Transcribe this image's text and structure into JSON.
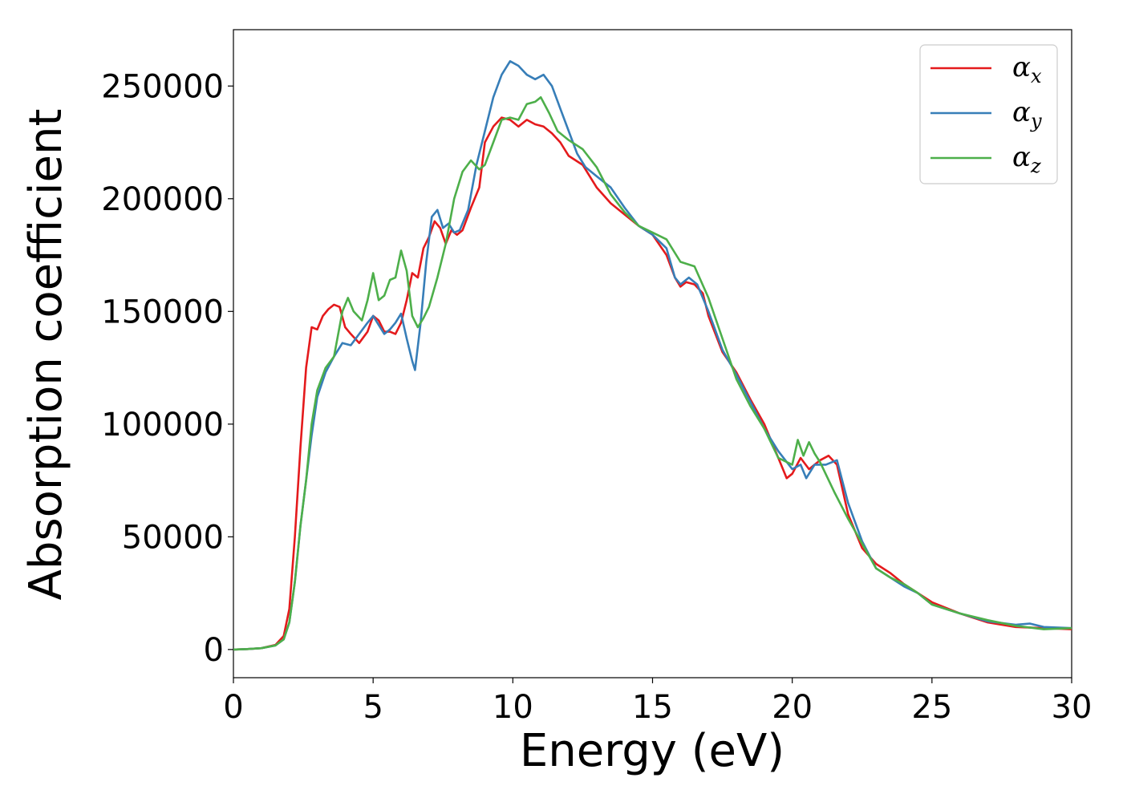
{
  "chart_data": {
    "type": "line",
    "xlabel": "Energy (eV)",
    "ylabel": "Absorption coefficient",
    "xlim": [
      0,
      30
    ],
    "ylim": [
      -12500,
      275000
    ],
    "xticks": [
      0,
      5,
      10,
      15,
      20,
      25,
      30
    ],
    "yticks": [
      0,
      50000,
      100000,
      150000,
      200000,
      250000
    ],
    "grid": false,
    "legend_position": "top-right",
    "series": [
      {
        "name": "α_x",
        "symbol": "α",
        "subscript": "x",
        "color": "#e41a1c",
        "points": [
          [
            0,
            0
          ],
          [
            0.5,
            200
          ],
          [
            1,
            600
          ],
          [
            1.5,
            2000
          ],
          [
            1.8,
            6000
          ],
          [
            2.0,
            18000
          ],
          [
            2.2,
            50000
          ],
          [
            2.4,
            90000
          ],
          [
            2.6,
            125000
          ],
          [
            2.8,
            143000
          ],
          [
            3.0,
            142000
          ],
          [
            3.2,
            148000
          ],
          [
            3.4,
            151000
          ],
          [
            3.6,
            153000
          ],
          [
            3.8,
            152000
          ],
          [
            4.0,
            143000
          ],
          [
            4.2,
            140000
          ],
          [
            4.5,
            136000
          ],
          [
            4.8,
            141000
          ],
          [
            5.0,
            148000
          ],
          [
            5.2,
            146000
          ],
          [
            5.4,
            141000
          ],
          [
            5.6,
            141000
          ],
          [
            5.8,
            140000
          ],
          [
            6.0,
            145000
          ],
          [
            6.2,
            155000
          ],
          [
            6.4,
            167000
          ],
          [
            6.6,
            165000
          ],
          [
            6.8,
            178000
          ],
          [
            7.0,
            183000
          ],
          [
            7.2,
            190000
          ],
          [
            7.4,
            187000
          ],
          [
            7.6,
            180000
          ],
          [
            7.8,
            186000
          ],
          [
            8.0,
            184000
          ],
          [
            8.2,
            186000
          ],
          [
            8.5,
            196000
          ],
          [
            8.8,
            205000
          ],
          [
            9.0,
            225000
          ],
          [
            9.3,
            232000
          ],
          [
            9.6,
            236000
          ],
          [
            9.9,
            235000
          ],
          [
            10.2,
            232000
          ],
          [
            10.5,
            235000
          ],
          [
            10.8,
            233000
          ],
          [
            11.1,
            232000
          ],
          [
            11.4,
            229000
          ],
          [
            11.7,
            225000
          ],
          [
            12.0,
            219000
          ],
          [
            12.5,
            215000
          ],
          [
            13.0,
            205000
          ],
          [
            13.5,
            198000
          ],
          [
            14.0,
            193000
          ],
          [
            14.5,
            188000
          ],
          [
            15.0,
            184000
          ],
          [
            15.5,
            175000
          ],
          [
            15.8,
            165000
          ],
          [
            16.0,
            161000
          ],
          [
            16.2,
            163000
          ],
          [
            16.5,
            162000
          ],
          [
            16.8,
            158000
          ],
          [
            17.0,
            148000
          ],
          [
            17.5,
            132000
          ],
          [
            18.0,
            123000
          ],
          [
            18.5,
            111000
          ],
          [
            19.0,
            100000
          ],
          [
            19.5,
            85000
          ],
          [
            19.8,
            76000
          ],
          [
            20.0,
            78000
          ],
          [
            20.3,
            85000
          ],
          [
            20.6,
            80000
          ],
          [
            21.0,
            84000
          ],
          [
            21.3,
            86000
          ],
          [
            21.6,
            82000
          ],
          [
            22.0,
            60000
          ],
          [
            22.5,
            45000
          ],
          [
            23.0,
            38000
          ],
          [
            23.5,
            34000
          ],
          [
            24.0,
            29000
          ],
          [
            24.5,
            25000
          ],
          [
            25.0,
            21000
          ],
          [
            26.0,
            16000
          ],
          [
            27.0,
            12000
          ],
          [
            28.0,
            10000
          ],
          [
            29.0,
            9500
          ],
          [
            30.0,
            9000
          ]
        ]
      },
      {
        "name": "α_y",
        "symbol": "α",
        "subscript": "y",
        "color": "#377eb8",
        "points": [
          [
            0,
            0
          ],
          [
            0.5,
            200
          ],
          [
            1,
            600
          ],
          [
            1.5,
            1800
          ],
          [
            1.8,
            4500
          ],
          [
            2.0,
            12000
          ],
          [
            2.2,
            30000
          ],
          [
            2.4,
            55000
          ],
          [
            2.6,
            75000
          ],
          [
            2.8,
            95000
          ],
          [
            3.0,
            112000
          ],
          [
            3.3,
            123000
          ],
          [
            3.6,
            130000
          ],
          [
            3.9,
            136000
          ],
          [
            4.2,
            135000
          ],
          [
            4.5,
            140000
          ],
          [
            4.8,
            145000
          ],
          [
            5.0,
            148000
          ],
          [
            5.2,
            144000
          ],
          [
            5.4,
            140000
          ],
          [
            5.6,
            142000
          ],
          [
            5.8,
            145000
          ],
          [
            6.0,
            149000
          ],
          [
            6.2,
            138000
          ],
          [
            6.4,
            128000
          ],
          [
            6.5,
            124000
          ],
          [
            6.7,
            145000
          ],
          [
            6.9,
            172000
          ],
          [
            7.1,
            192000
          ],
          [
            7.3,
            195000
          ],
          [
            7.5,
            187000
          ],
          [
            7.7,
            189000
          ],
          [
            7.9,
            185000
          ],
          [
            8.1,
            186000
          ],
          [
            8.4,
            195000
          ],
          [
            8.7,
            215000
          ],
          [
            9.0,
            230000
          ],
          [
            9.3,
            245000
          ],
          [
            9.6,
            255000
          ],
          [
            9.9,
            261000
          ],
          [
            10.2,
            259000
          ],
          [
            10.5,
            255000
          ],
          [
            10.8,
            253000
          ],
          [
            11.1,
            255000
          ],
          [
            11.4,
            250000
          ],
          [
            11.7,
            240000
          ],
          [
            12.0,
            230000
          ],
          [
            12.3,
            220000
          ],
          [
            12.6,
            214000
          ],
          [
            13.0,
            210000
          ],
          [
            13.5,
            205000
          ],
          [
            14.0,
            196000
          ],
          [
            14.5,
            188000
          ],
          [
            15.0,
            184000
          ],
          [
            15.5,
            178000
          ],
          [
            15.8,
            165000
          ],
          [
            16.0,
            162000
          ],
          [
            16.3,
            165000
          ],
          [
            16.6,
            162000
          ],
          [
            17.0,
            150000
          ],
          [
            17.5,
            133000
          ],
          [
            18.0,
            122000
          ],
          [
            18.5,
            110000
          ],
          [
            19.0,
            98000
          ],
          [
            19.5,
            88000
          ],
          [
            20.0,
            80000
          ],
          [
            20.3,
            82000
          ],
          [
            20.5,
            76000
          ],
          [
            20.8,
            82000
          ],
          [
            21.2,
            82000
          ],
          [
            21.6,
            84000
          ],
          [
            22.0,
            65000
          ],
          [
            22.5,
            48000
          ],
          [
            23.0,
            36000
          ],
          [
            23.5,
            32000
          ],
          [
            24.0,
            28000
          ],
          [
            24.5,
            25000
          ],
          [
            25.0,
            20000
          ],
          [
            26.0,
            16000
          ],
          [
            27.0,
            12500
          ],
          [
            28.0,
            11000
          ],
          [
            28.5,
            11500
          ],
          [
            29.0,
            10000
          ],
          [
            30.0,
            9500
          ]
        ]
      },
      {
        "name": "α_z",
        "symbol": "α",
        "subscript": "z",
        "color": "#4daf4a",
        "points": [
          [
            0,
            0
          ],
          [
            0.5,
            200
          ],
          [
            1,
            600
          ],
          [
            1.5,
            1800
          ],
          [
            1.8,
            4500
          ],
          [
            2.0,
            12000
          ],
          [
            2.2,
            30000
          ],
          [
            2.4,
            55000
          ],
          [
            2.6,
            75000
          ],
          [
            2.8,
            100000
          ],
          [
            3.0,
            115000
          ],
          [
            3.3,
            125000
          ],
          [
            3.6,
            130000
          ],
          [
            3.9,
            150000
          ],
          [
            4.1,
            156000
          ],
          [
            4.3,
            150000
          ],
          [
            4.6,
            146000
          ],
          [
            4.8,
            155000
          ],
          [
            5.0,
            167000
          ],
          [
            5.2,
            155000
          ],
          [
            5.4,
            157000
          ],
          [
            5.6,
            164000
          ],
          [
            5.8,
            165000
          ],
          [
            6.0,
            177000
          ],
          [
            6.2,
            168000
          ],
          [
            6.4,
            148000
          ],
          [
            6.6,
            143000
          ],
          [
            6.8,
            147000
          ],
          [
            7.0,
            152000
          ],
          [
            7.3,
            165000
          ],
          [
            7.6,
            180000
          ],
          [
            7.9,
            200000
          ],
          [
            8.2,
            212000
          ],
          [
            8.5,
            217000
          ],
          [
            8.8,
            213000
          ],
          [
            9.0,
            215000
          ],
          [
            9.3,
            225000
          ],
          [
            9.6,
            235000
          ],
          [
            9.9,
            236000
          ],
          [
            10.2,
            235000
          ],
          [
            10.5,
            242000
          ],
          [
            10.8,
            243000
          ],
          [
            11.0,
            245000
          ],
          [
            11.3,
            238000
          ],
          [
            11.6,
            230000
          ],
          [
            12.0,
            226000
          ],
          [
            12.5,
            222000
          ],
          [
            13.0,
            214000
          ],
          [
            13.5,
            202000
          ],
          [
            14.0,
            194000
          ],
          [
            14.5,
            188000
          ],
          [
            15.0,
            185000
          ],
          [
            15.5,
            182000
          ],
          [
            16.0,
            172000
          ],
          [
            16.5,
            170000
          ],
          [
            17.0,
            156000
          ],
          [
            17.5,
            138000
          ],
          [
            18.0,
            120000
          ],
          [
            18.5,
            108000
          ],
          [
            19.0,
            98000
          ],
          [
            19.5,
            85000
          ],
          [
            20.0,
            82000
          ],
          [
            20.2,
            93000
          ],
          [
            20.4,
            86000
          ],
          [
            20.6,
            92000
          ],
          [
            20.8,
            87000
          ],
          [
            21.0,
            83000
          ],
          [
            21.5,
            70000
          ],
          [
            22.0,
            58000
          ],
          [
            22.5,
            47000
          ],
          [
            23.0,
            36000
          ],
          [
            23.5,
            32000
          ],
          [
            24.0,
            29000
          ],
          [
            24.5,
            25000
          ],
          [
            25.0,
            20000
          ],
          [
            26.0,
            16000
          ],
          [
            27.0,
            13000
          ],
          [
            28.0,
            10500
          ],
          [
            29.0,
            9000
          ],
          [
            30.0,
            9500
          ]
        ]
      }
    ]
  }
}
